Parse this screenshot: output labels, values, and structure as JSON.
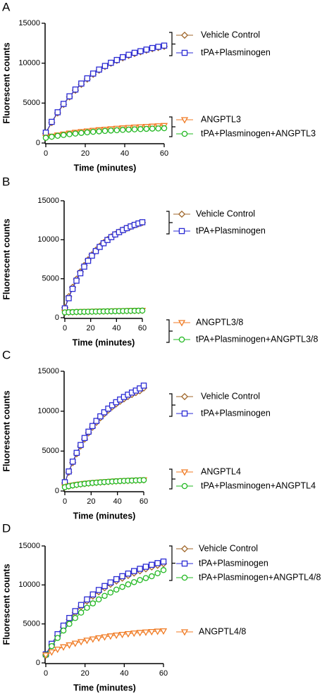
{
  "chart_data": [
    {
      "type": "line",
      "panel_label": "A",
      "xlabel": "Time (minutes)",
      "ylabel": "Fluorescent counts",
      "x": [
        0,
        3,
        6,
        9,
        12,
        15,
        18,
        21,
        24,
        27,
        30,
        33,
        36,
        39,
        42,
        45,
        48,
        51,
        54,
        57,
        60
      ],
      "xlim": [
        0,
        60
      ],
      "xticks": [
        0,
        20,
        40,
        60
      ],
      "ylim": [
        0,
        15000
      ],
      "yticks": [
        0,
        5000,
        10000,
        15000
      ],
      "series": [
        {
          "name": "Vehicle Control",
          "color": "#a0672b",
          "marker": "diamond",
          "values": [
            1200,
            2560,
            3760,
            4830,
            5770,
            6610,
            7350,
            8010,
            8600,
            9120,
            9580,
            9990,
            10350,
            10670,
            10960,
            11210,
            11430,
            11630,
            11810,
            11960,
            12100
          ]
        },
        {
          "name": "tPA+Plasminogen",
          "color": "#2b2bd4",
          "marker": "square",
          "values": [
            1300,
            2650,
            3850,
            4900,
            5850,
            6700,
            7450,
            8100,
            8700,
            9200,
            9650,
            10050,
            10400,
            10750,
            11050,
            11300,
            11500,
            11700,
            11900,
            12050,
            12200
          ]
        },
        {
          "name": "ANGPTL3",
          "color": "#f07b24",
          "marker": "triangle",
          "values": [
            700,
            850,
            990,
            1110,
            1230,
            1330,
            1420,
            1500,
            1580,
            1650,
            1710,
            1770,
            1830,
            1880,
            1930,
            1980,
            2020,
            2060,
            2100,
            2140,
            2180
          ]
        },
        {
          "name": "tPA+Plasminogen+ANGPTL3",
          "color": "#22b822",
          "marker": "circle",
          "values": [
            650,
            780,
            900,
            1000,
            1100,
            1180,
            1260,
            1330,
            1400,
            1460,
            1510,
            1560,
            1600,
            1640,
            1680,
            1710,
            1740,
            1770,
            1800,
            1820,
            1850
          ]
        }
      ]
    },
    {
      "type": "line",
      "panel_label": "B",
      "xlabel": "Time (minutes)",
      "ylabel": "Fluorescent counts",
      "x": [
        0,
        3,
        6,
        9,
        12,
        15,
        18,
        21,
        24,
        27,
        30,
        33,
        36,
        39,
        42,
        45,
        48,
        51,
        54,
        57,
        60
      ],
      "xlim": [
        0,
        60
      ],
      "xticks": [
        0,
        20,
        40,
        60
      ],
      "ylim": [
        0,
        15000
      ],
      "yticks": [
        0,
        5000,
        10000,
        15000
      ],
      "series": [
        {
          "name": "Vehicle Control",
          "color": "#a0672b",
          "marker": "diamond",
          "values": [
            1300,
            2700,
            3900,
            4950,
            5880,
            6700,
            7430,
            8080,
            8660,
            9170,
            9620,
            10020,
            10380,
            10700,
            10990,
            11250,
            11480,
            11690,
            11880,
            12050,
            12200
          ]
        },
        {
          "name": "tPA+Plasminogen",
          "color": "#2b2bd4",
          "marker": "square",
          "values": [
            1200,
            2500,
            3700,
            4750,
            5700,
            6550,
            7300,
            7960,
            8550,
            9080,
            9550,
            9970,
            10340,
            10680,
            10980,
            11250,
            11490,
            11710,
            11910,
            12090,
            12250
          ]
        },
        {
          "name": "ANGPTL3/8",
          "color": "#f07b24",
          "marker": "triangle",
          "values": [
            700,
            720,
            740,
            760,
            780,
            790,
            800,
            810,
            820,
            830,
            840,
            850,
            860,
            870,
            880,
            890,
            900,
            910,
            920,
            930,
            940
          ]
        },
        {
          "name": "tPA+Plasminogen+ANGPTL3/8",
          "color": "#22b822",
          "marker": "circle",
          "values": [
            680,
            700,
            720,
            740,
            750,
            760,
            770,
            780,
            790,
            800,
            810,
            820,
            830,
            840,
            850,
            860,
            870,
            880,
            890,
            900,
            910
          ]
        }
      ]
    },
    {
      "type": "line",
      "panel_label": "C",
      "xlabel": "Time (minutes)",
      "ylabel": "Fluorescent counts",
      "x": [
        0,
        3,
        6,
        9,
        12,
        15,
        18,
        21,
        24,
        27,
        30,
        33,
        36,
        39,
        42,
        45,
        48,
        51,
        54,
        57,
        60
      ],
      "xlim": [
        0,
        60
      ],
      "xticks": [
        0,
        20,
        40,
        60
      ],
      "ylim": [
        0,
        15000
      ],
      "yticks": [
        0,
        5000,
        10000,
        15000
      ],
      "series": [
        {
          "name": "Vehicle Control",
          "color": "#a0672b",
          "marker": "diamond",
          "values": [
            1000,
            2350,
            3550,
            4650,
            5630,
            6500,
            7280,
            7980,
            8600,
            9160,
            9670,
            10120,
            10530,
            10900,
            11240,
            11550,
            11830,
            12090,
            12330,
            12550,
            12900
          ]
        },
        {
          "name": "tPA+Plasminogen",
          "color": "#2b2bd4",
          "marker": "square",
          "values": [
            1100,
            2450,
            3680,
            4780,
            5760,
            6640,
            7430,
            8140,
            8780,
            9350,
            9860,
            10320,
            10740,
            11120,
            11460,
            11780,
            12070,
            12330,
            12580,
            12850,
            13200
          ]
        },
        {
          "name": "ANGPTL4",
          "color": "#f07b24",
          "marker": "triangle",
          "values": [
            500,
            620,
            720,
            800,
            870,
            930,
            980,
            1030,
            1070,
            1110,
            1150,
            1180,
            1210,
            1240,
            1270,
            1290,
            1310,
            1330,
            1350,
            1370,
            1390
          ]
        },
        {
          "name": "tPA+Plasminogen+ANGPTL4",
          "color": "#22b822",
          "marker": "circle",
          "values": [
            480,
            600,
            700,
            780,
            850,
            910,
            960,
            1010,
            1050,
            1090,
            1130,
            1160,
            1190,
            1220,
            1250,
            1270,
            1290,
            1310,
            1330,
            1350,
            1370
          ]
        }
      ]
    },
    {
      "type": "line",
      "panel_label": "D",
      "xlabel": "Time (minutes)",
      "ylabel": "Fluorescent counts",
      "x": [
        0,
        3,
        6,
        9,
        12,
        15,
        18,
        21,
        24,
        27,
        30,
        33,
        36,
        39,
        42,
        45,
        48,
        51,
        54,
        57,
        60
      ],
      "xlim": [
        0,
        60
      ],
      "xticks": [
        0,
        20,
        40,
        60
      ],
      "ylim": [
        0,
        15000
      ],
      "yticks": [
        0,
        5000,
        10000,
        15000
      ],
      "series": [
        {
          "name": "Vehicle Control",
          "color": "#a0672b",
          "marker": "diamond",
          "values": [
            1000,
            2300,
            3500,
            4600,
            5580,
            6450,
            7230,
            7930,
            8560,
            9120,
            9630,
            10090,
            10500,
            10870,
            11210,
            11520,
            11800,
            12060,
            12300,
            12520,
            12720
          ]
        },
        {
          "name": "tPA+Plasminogen",
          "color": "#2b2bd4",
          "marker": "square",
          "values": [
            1100,
            2450,
            3680,
            4780,
            5760,
            6640,
            7430,
            8140,
            8780,
            9350,
            9860,
            10320,
            10740,
            11120,
            11460,
            11780,
            12070,
            12330,
            12580,
            12800,
            13000
          ]
        },
        {
          "name": "tPA+Plasminogen+ANGPTL4/8",
          "color": "#22b822",
          "marker": "circle",
          "values": [
            1000,
            2150,
            3200,
            4150,
            5000,
            5760,
            6450,
            7070,
            7630,
            8140,
            8600,
            9020,
            9400,
            9750,
            10070,
            10360,
            10630,
            10880,
            11110,
            11500,
            11900
          ]
        },
        {
          "name": "ANGPTL4/8",
          "color": "#f07b24",
          "marker": "triangle",
          "values": [
            1000,
            1400,
            1750,
            2050,
            2300,
            2520,
            2720,
            2900,
            3060,
            3200,
            3330,
            3450,
            3560,
            3650,
            3740,
            3820,
            3890,
            3950,
            4010,
            4060,
            4100
          ]
        }
      ]
    }
  ]
}
